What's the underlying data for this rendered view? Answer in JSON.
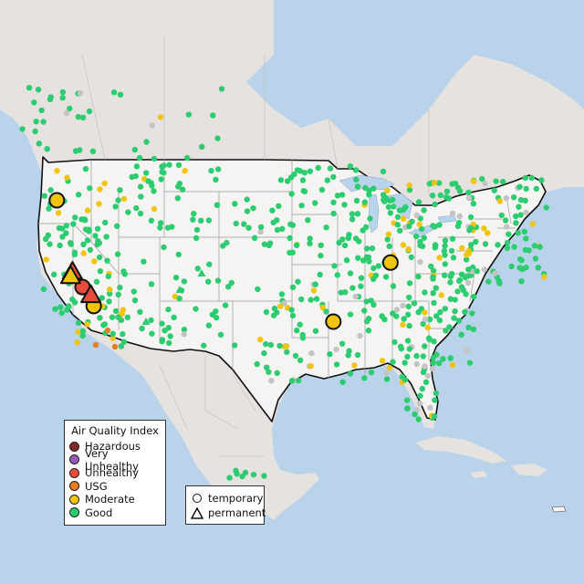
{
  "legend": {
    "title": "Air Quality Index",
    "categories": [
      {
        "label": "Hazardous",
        "color": "#7e2a2a"
      },
      {
        "label": "Very Unhealthy",
        "color": "#9b59b6"
      },
      {
        "label": "Unhealthy",
        "color": "#e74c3c"
      },
      {
        "label": "USG",
        "color": "#e67e22"
      },
      {
        "label": "Moderate",
        "color": "#f1c40f"
      },
      {
        "label": "Good",
        "color": "#2ecc71"
      }
    ],
    "no_data_color": "#c4c4c4"
  },
  "site_types": {
    "temporary": {
      "label": "temporary",
      "shape": "circle"
    },
    "permanent": {
      "label": "permanent",
      "shape": "triangle"
    }
  },
  "chart_data": {
    "type": "map",
    "region": "Contiguous United States with surrounding Canada, Mexico and Caribbean",
    "background": {
      "water": "#b9d3ea",
      "land": "#e6e2df",
      "us_land": "#f5f4f2"
    },
    "highlighted_sites": [
      {
        "site": "temporary",
        "category": "Moderate",
        "lat": 45.6,
        "lon": -122.3
      },
      {
        "site": "temporary",
        "category": "Moderate",
        "lat": 40.0,
        "lon": -86.1
      },
      {
        "site": "temporary",
        "category": "Moderate",
        "lat": 34.7,
        "lon": -92.3
      },
      {
        "site": "temporary",
        "category": "Moderate",
        "lat": 36.1,
        "lon": -118.3
      },
      {
        "site": "temporary",
        "category": "Unhealthy",
        "lat": 37.8,
        "lon": -119.5
      },
      {
        "site": "permanent",
        "category": "Unhealthy",
        "lat": 39.2,
        "lon": -120.6
      },
      {
        "site": "permanent",
        "category": "Unhealthy",
        "lat": 37.1,
        "lon": -118.6
      },
      {
        "site": "permanent",
        "category": "Moderate",
        "lat": 38.8,
        "lon": -120.8
      }
    ]
  }
}
